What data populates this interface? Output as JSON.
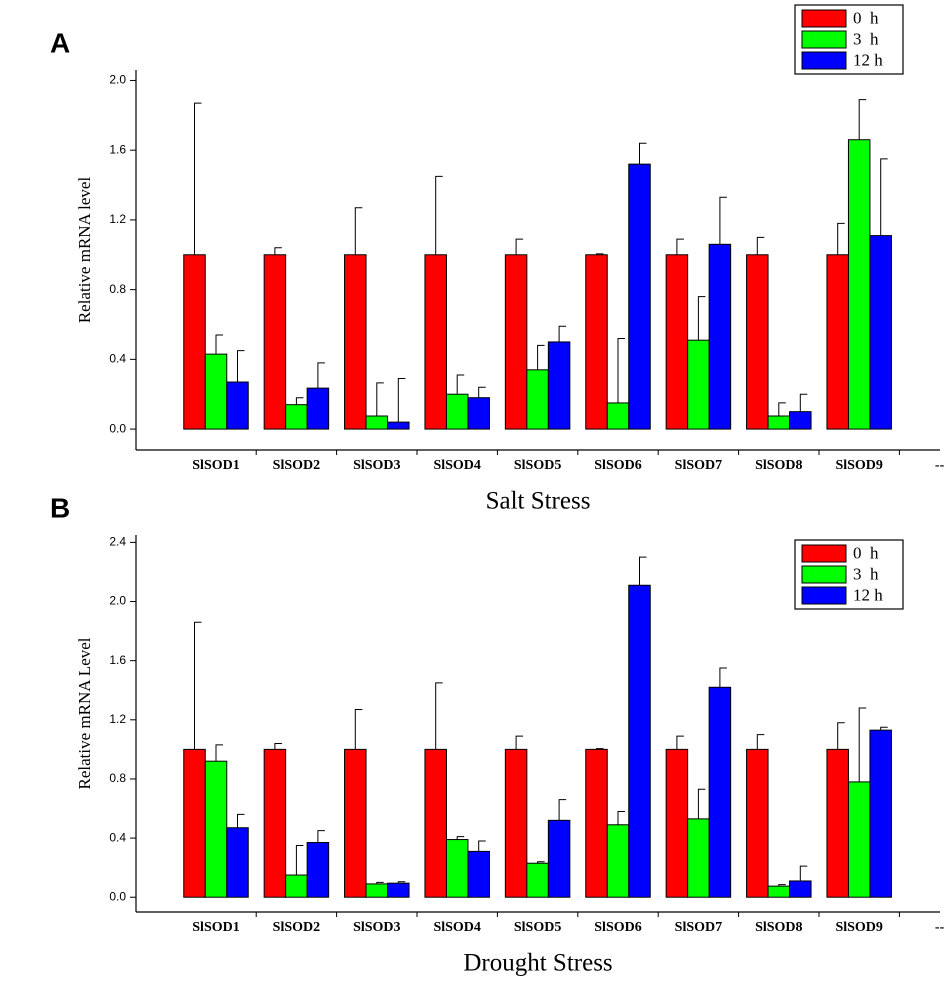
{
  "chart_data": [
    {
      "type": "bar",
      "panel_label": "A",
      "ylabel": "Relative mRNA level",
      "xlabel": "Salt   Stress",
      "categories": [
        "SlSOD1",
        "SlSOD2",
        "SlSOD3",
        "SlSOD4",
        "SlSOD5",
        "SlSOD6",
        "SlSOD7",
        "SlSOD8",
        "SlSOD9",
        "--"
      ],
      "series": [
        {
          "name": "0  h",
          "color": "#ff0000",
          "values": [
            1.0,
            1.0,
            1.0,
            1.0,
            1.0,
            1.0,
            1.0,
            1.0,
            1.0,
            null
          ],
          "errors": [
            0.87,
            0.04,
            0.27,
            0.45,
            0.09,
            0.005,
            0.09,
            0.1,
            0.18,
            null
          ]
        },
        {
          "name": "3  h",
          "color": "#00ff00",
          "values": [
            0.43,
            0.14,
            0.075,
            0.2,
            0.34,
            0.15,
            0.51,
            0.075,
            1.66,
            null
          ],
          "errors": [
            0.11,
            0.04,
            0.19,
            0.11,
            0.14,
            0.37,
            0.25,
            0.075,
            0.23,
            null
          ]
        },
        {
          "name": "12 h",
          "color": "#0000ff",
          "values": [
            0.27,
            0.235,
            0.04,
            0.18,
            0.5,
            1.52,
            1.06,
            0.1,
            1.11,
            null
          ],
          "errors": [
            0.18,
            0.145,
            0.25,
            0.06,
            0.09,
            0.12,
            0.27,
            0.1,
            0.44,
            null
          ]
        }
      ],
      "ylim": [
        -0.12,
        2.06
      ],
      "yticks": [
        {
          "value": 0,
          "label": "0.0"
        },
        0.4,
        0.8,
        1.2,
        1.6,
        {
          "value": 2,
          "label": "2.0"
        }
      ],
      "legend": "upper right"
    },
    {
      "type": "bar",
      "panel_label": "B",
      "ylabel": "Relative mRNA Level",
      "xlabel": "Drought   Stress",
      "categories": [
        "SlSOD1",
        "SlSOD2",
        "SlSOD3",
        "SlSOD4",
        "SlSOD5",
        "SlSOD6",
        "SlSOD7",
        "SlSOD8",
        "SlSOD9",
        "--"
      ],
      "series": [
        {
          "name": "0  h",
          "color": "#ff0000",
          "values": [
            1.0,
            1.0,
            1.0,
            1.0,
            1.0,
            1.0,
            1.0,
            1.0,
            1.0,
            null
          ],
          "errors": [
            0.86,
            0.04,
            0.27,
            0.45,
            0.09,
            0.005,
            0.09,
            0.1,
            0.18,
            null
          ]
        },
        {
          "name": "3  h",
          "color": "#00ff00",
          "values": [
            0.92,
            0.15,
            0.09,
            0.39,
            0.23,
            0.49,
            0.53,
            0.075,
            0.78,
            null
          ],
          "errors": [
            0.11,
            0.2,
            0.01,
            0.02,
            0.01,
            0.09,
            0.2,
            0.01,
            0.5,
            null
          ]
        },
        {
          "name": "12 h",
          "color": "#0000ff",
          "values": [
            0.47,
            0.37,
            0.095,
            0.31,
            0.52,
            2.11,
            1.42,
            0.11,
            1.13,
            null
          ],
          "errors": [
            0.09,
            0.08,
            0.01,
            0.07,
            0.14,
            0.19,
            0.13,
            0.1,
            0.02,
            null
          ]
        }
      ],
      "ylim": [
        -0.1,
        2.45
      ],
      "yticks": [
        {
          "value": 0,
          "label": "0.0"
        },
        0.4,
        0.8,
        1.2,
        1.6,
        {
          "value": 2,
          "label": "2.0"
        },
        2.4
      ],
      "legend": "upper right"
    }
  ]
}
